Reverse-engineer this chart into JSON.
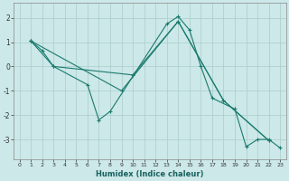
{
  "title": "",
  "xlabel": "Humidex (Indice chaleur)",
  "ylabel": "",
  "background_color": "#cce8e8",
  "grid_color": "#aacccc",
  "line_color": "#1a7a6e",
  "xlim": [
    -0.5,
    23.5
  ],
  "ylim": [
    -3.8,
    2.6
  ],
  "yticks": [
    -3,
    -2,
    -1,
    0,
    1,
    2
  ],
  "xticks": [
    0,
    1,
    2,
    3,
    4,
    5,
    6,
    7,
    8,
    9,
    10,
    11,
    12,
    13,
    14,
    15,
    16,
    17,
    18,
    19,
    20,
    21,
    22,
    23
  ],
  "line1_x": [
    1,
    2,
    3,
    6,
    7,
    8,
    13,
    14,
    15,
    16,
    17,
    19,
    20,
    21,
    22,
    23
  ],
  "line1_y": [
    1.05,
    0.65,
    0.0,
    -0.75,
    -2.2,
    -1.85,
    1.75,
    2.05,
    1.5,
    0.0,
    -1.3,
    -1.75,
    -3.3,
    -3.0,
    -3.0,
    -3.35
  ],
  "line2_x": [
    1,
    3,
    10,
    14,
    18,
    22
  ],
  "line2_y": [
    1.05,
    0.0,
    -0.35,
    1.85,
    -1.4,
    -3.05
  ],
  "line3_x": [
    1,
    9,
    14,
    18,
    22
  ],
  "line3_y": [
    1.05,
    -1.0,
    1.85,
    -1.4,
    -3.05
  ],
  "figsize": [
    3.2,
    2.0
  ],
  "dpi": 100
}
